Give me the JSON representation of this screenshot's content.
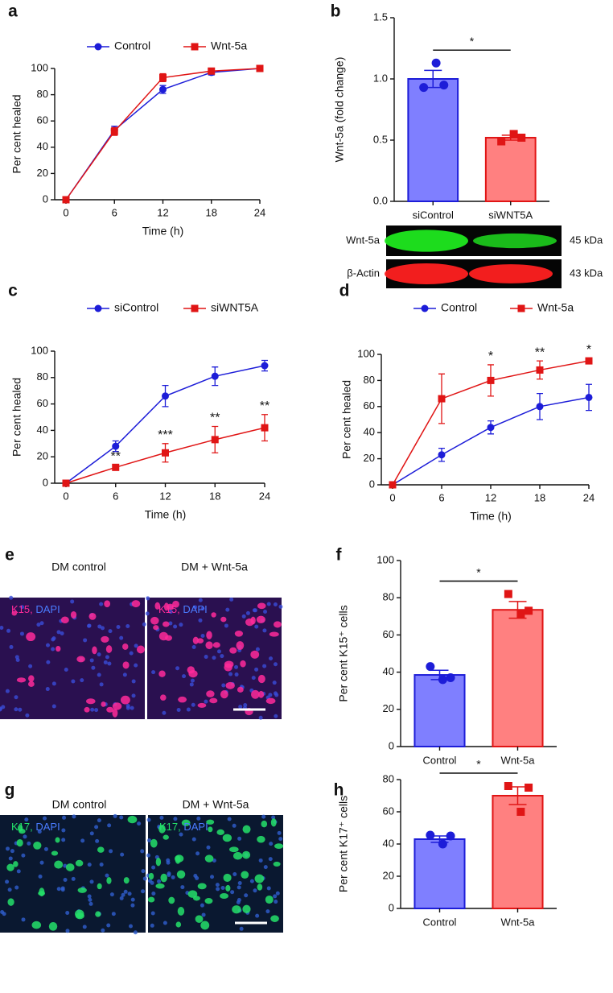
{
  "chart_data": [
    {
      "type": "line",
      "panel": "a",
      "x": [
        0,
        6,
        12,
        18,
        24
      ],
      "xlim": [
        0,
        24
      ],
      "xticks": [
        0,
        6,
        12,
        18,
        24
      ],
      "ylim": [
        0,
        100
      ],
      "yticks": [
        0,
        20,
        40,
        60,
        80,
        100
      ],
      "xlabel": "Time (h)",
      "ylabel": "Per cent healed",
      "series": [
        {
          "name": "Control",
          "color": "#1d1dd8",
          "marker": "circle",
          "values": [
            0,
            53,
            84,
            97,
            100
          ],
          "errors": [
            0,
            3,
            3,
            2,
            0
          ]
        },
        {
          "name": "Wnt-5a",
          "color": "#e01515",
          "marker": "square",
          "values": [
            0,
            52,
            93,
            98,
            100
          ],
          "errors": [
            0,
            3,
            3,
            1,
            0
          ]
        }
      ]
    },
    {
      "type": "bar",
      "panel": "b",
      "categories": [
        "siControl",
        "siWNT5A"
      ],
      "ylabel": "Wnt-5a (fold change)",
      "ylim": [
        0,
        1.5
      ],
      "yticks": [
        {
          "value": 0,
          "label": "0.0"
        },
        0.5,
        {
          "value": 1,
          "label": "1.0"
        },
        1.5
      ],
      "values": [
        1.0,
        0.52
      ],
      "errors": [
        0.07,
        0.02
      ],
      "points": [
        [
          0.93,
          1.13,
          0.95
        ],
        [
          0.49,
          0.55,
          0.52
        ]
      ],
      "fill": [
        "#7f7fff",
        "#ff8080"
      ],
      "edge": [
        "#1d1dd8",
        "#e01515"
      ],
      "significance": "*",
      "blot": {
        "bands": [
          "Wnt-5a",
          "β-Actin"
        ],
        "sizes": [
          "45 kDa",
          "43 kDa"
        ]
      }
    },
    {
      "type": "line",
      "panel": "c",
      "x": [
        0,
        6,
        12,
        18,
        24
      ],
      "xlim": [
        0,
        24
      ],
      "xticks": [
        0,
        6,
        12,
        18,
        24
      ],
      "ylim": [
        0,
        100
      ],
      "yticks": [
        0,
        20,
        40,
        60,
        80,
        100
      ],
      "xlabel": "Time (h)",
      "ylabel": "Per cent healed",
      "series": [
        {
          "name": "siControl",
          "color": "#1d1dd8",
          "marker": "circle",
          "values": [
            0,
            28,
            66,
            81,
            89
          ],
          "errors": [
            0,
            4,
            8,
            7,
            4
          ]
        },
        {
          "name": "siWNT5A",
          "color": "#e01515",
          "marker": "square",
          "values": [
            0,
            12,
            23,
            33,
            42
          ],
          "errors": [
            0,
            2,
            7,
            10,
            10
          ]
        }
      ],
      "annotations": [
        {
          "x": 6,
          "text": "**"
        },
        {
          "x": 12,
          "text": "***"
        },
        {
          "x": 18,
          "text": "**"
        },
        {
          "x": 24,
          "text": "**"
        }
      ]
    },
    {
      "type": "line",
      "panel": "d",
      "x": [
        0,
        6,
        12,
        18,
        24
      ],
      "xlim": [
        0,
        24
      ],
      "xticks": [
        0,
        6,
        12,
        18,
        24
      ],
      "ylim": [
        0,
        100
      ],
      "yticks": [
        0,
        20,
        40,
        60,
        80,
        100
      ],
      "xlabel": "Time (h)",
      "ylabel": "Per cent healed",
      "series": [
        {
          "name": "Control",
          "color": "#1d1dd8",
          "marker": "circle",
          "values": [
            0,
            23,
            44,
            60,
            67
          ],
          "errors": [
            0,
            5,
            5,
            10,
            10
          ]
        },
        {
          "name": "Wnt-5a",
          "color": "#e01515",
          "marker": "square",
          "values": [
            0,
            66,
            80,
            88,
            95
          ],
          "errors": [
            0,
            19,
            12,
            7,
            2
          ]
        }
      ],
      "annotations": [
        {
          "x": 12,
          "text": "*"
        },
        {
          "x": 18,
          "text": "**"
        },
        {
          "x": 24,
          "text": "*"
        }
      ]
    },
    {
      "type": "bar",
      "panel": "f",
      "categories": [
        "Control",
        "Wnt-5a"
      ],
      "ylabel": "Per cent K15⁺ cells",
      "ylim": [
        0,
        100
      ],
      "yticks": [
        0,
        20,
        40,
        60,
        80,
        100
      ],
      "values": [
        38.5,
        73.5
      ],
      "errors": [
        2.5,
        4.5
      ],
      "points": [
        [
          43,
          36,
          37
        ],
        [
          82,
          71,
          73
        ]
      ],
      "fill": [
        "#7f7fff",
        "#ff8080"
      ],
      "edge": [
        "#1d1dd8",
        "#e01515"
      ],
      "significance": "*"
    },
    {
      "type": "bar",
      "panel": "h",
      "categories": [
        "Control",
        "Wnt-5a"
      ],
      "ylabel": "Per cent K17⁺ cells",
      "ylim": [
        0,
        80
      ],
      "yticks": [
        0,
        20,
        40,
        60,
        80
      ],
      "values": [
        43,
        70
      ],
      "errors": [
        2,
        5.5
      ],
      "points": [
        [
          45.5,
          40,
          45
        ],
        [
          76,
          60,
          75
        ]
      ],
      "fill": [
        "#7f7fff",
        "#ff8080"
      ],
      "edge": [
        "#1d1dd8",
        "#e01515"
      ],
      "significance": "*"
    }
  ],
  "images": [
    {
      "panel": "e",
      "labels": [
        "DM control",
        "DM + Wnt-5a"
      ],
      "stain": [
        "K15,",
        "DAPI"
      ]
    },
    {
      "panel": "g",
      "labels": [
        "DM control",
        "DM + Wnt-5a"
      ],
      "stain": [
        "K17,",
        "DAPI"
      ]
    }
  ]
}
